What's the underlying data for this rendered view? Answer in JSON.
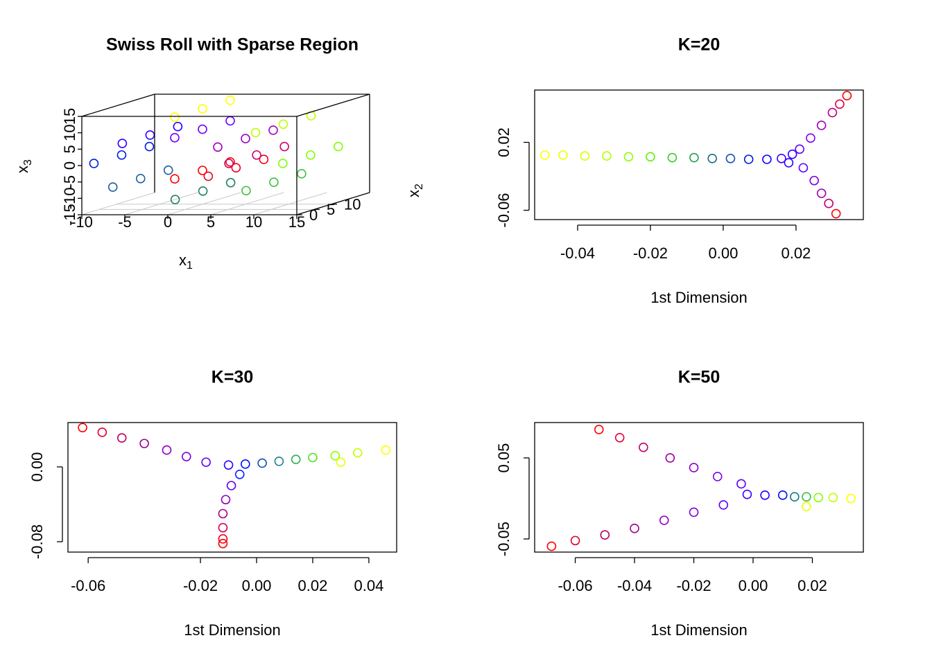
{
  "chart_data": [
    {
      "type": "scatter3d",
      "title": "Swiss Roll with Sparse Region",
      "xlabel": [
        "x",
        "1"
      ],
      "ylabel": [
        "x",
        "2"
      ],
      "zlabel": [
        "x",
        "3"
      ],
      "xlim": [
        -10,
        15
      ],
      "ylim": [
        0,
        21
      ],
      "zlim": [
        -15,
        15
      ],
      "xticks": [
        -10,
        -5,
        0,
        5,
        10,
        15
      ],
      "yticks": [
        0,
        5,
        10
      ],
      "zticks": [
        -15,
        -10,
        -5,
        0,
        5,
        10,
        15
      ],
      "grid": true,
      "x": [
        0,
        0,
        0,
        3.9,
        3.9,
        3.9,
        6.3,
        6.3,
        6.3,
        5,
        5,
        5,
        0,
        0,
        0,
        -6.1,
        -6.1,
        -6.1,
        -9.4,
        -9.4,
        -9.4,
        -7.2,
        -7.2,
        -7.2,
        0.05,
        0.05,
        0.05,
        8.3,
        8.3,
        8.3,
        12.57,
        12.57,
        12.57,
        9.4,
        9.4,
        9.4,
        0,
        0,
        0
      ],
      "y": [
        2,
        10,
        18,
        2,
        10,
        18,
        2,
        10,
        18,
        2,
        10,
        18,
        2,
        10,
        18,
        2,
        10,
        18,
        2,
        10,
        18,
        2,
        10,
        18,
        2,
        10,
        18,
        2,
        10,
        18,
        2,
        10,
        18,
        2,
        10,
        18,
        2,
        10,
        18
      ],
      "z": [
        -4.7,
        -4.7,
        -4.7,
        -3.9,
        -3.9,
        -3.9,
        0,
        0,
        0,
        5,
        5,
        5,
        7.85,
        7.85,
        7.85,
        6.1,
        6.1,
        6.1,
        0,
        0,
        0,
        -7.2,
        -7.2,
        -7.2,
        -11,
        -11,
        -11,
        -8.3,
        -8.3,
        -8.3,
        0,
        0,
        0,
        9.4,
        9.4,
        9.4,
        14.1,
        14.1,
        14.1
      ],
      "colors": [
        "#ff0000",
        "#ff0000",
        "#ff0000",
        "#f00020",
        "#f00020",
        "#f00020",
        "#d0006a",
        "#d0006a",
        "#d0006a",
        "#a000c0",
        "#a000c0",
        "#a000c0",
        "#7000ff",
        "#7000ff",
        "#7000ff",
        "#3000ff",
        "#3000ff",
        "#3000ff",
        "#0020e0",
        "#0020e0",
        "#0020e0",
        "#1f5fa0",
        "#1f5fa0",
        "#1f5fa0",
        "#208060",
        "#208060",
        "#208060",
        "#40c040",
        "#40c040",
        "#40c040",
        "#80ff00",
        "#80ff00",
        "#80ff00",
        "#c0ff00",
        "#c0ff00",
        "#c0ff00",
        "#ffff00",
        "#ffff00",
        "#ffff00"
      ]
    },
    {
      "type": "scatter",
      "title": "K=20",
      "xlabel": "1st Dimension",
      "xlim": [
        -0.0518,
        0.0385
      ],
      "ylim": [
        -0.071,
        0.0816
      ],
      "xticks": [
        -0.04,
        -0.02,
        {
          "value": 0,
          "label": "0.00"
        },
        0.02
      ],
      "yticks": [
        -0.06,
        0.02
      ],
      "x": [
        -0.049,
        -0.044,
        -0.038,
        -0.032,
        -0.026,
        -0.02,
        -0.014,
        -0.008,
        -0.003,
        0.002,
        0.007,
        0.012,
        0.016,
        0.018,
        0.019,
        0.021,
        0.024,
        0.027,
        0.03,
        0.032,
        0.034,
        0.022,
        0.025,
        0.027,
        0.029,
        0.031
      ],
      "y": [
        0.005,
        0.005,
        0.004,
        0.004,
        0.003,
        0.003,
        0.002,
        0.002,
        0.001,
        0.001,
        0,
        0,
        0.001,
        -0.004,
        0.006,
        0.012,
        0.025,
        0.04,
        0.055,
        0.065,
        0.075,
        -0.01,
        -0.025,
        -0.04,
        -0.052,
        -0.064
      ],
      "colors": [
        "#ffff00",
        "#eeff00",
        "#d8ff00",
        "#b8ff00",
        "#90ff00",
        "#60f000",
        "#30d020",
        "#20a050",
        "#1a7080",
        "#1050b0",
        "#0020e0",
        "#1000ff",
        "#4000ff",
        "#3000ff",
        "#3000ff",
        "#6000ff",
        "#8000f0",
        "#a000c0",
        "#c00080",
        "#e00040",
        "#ff0000",
        "#6000ff",
        "#8000e0",
        "#a000b0",
        "#c00070",
        "#ff0000"
      ]
    },
    {
      "type": "scatter",
      "title": "K=30",
      "xlabel": "1st Dimension",
      "xlim": [
        -0.0672,
        0.0499
      ],
      "ylim": [
        -0.0911,
        0.0474
      ],
      "xticks": [
        -0.06,
        -0.02,
        {
          "value": 0,
          "label": "0.00"
        },
        0.02,
        0.04
      ],
      "yticks": [
        -0.08,
        {
          "value": 0,
          "label": "0.00"
        }
      ],
      "x": [
        -0.062,
        -0.055,
        -0.048,
        -0.04,
        -0.032,
        -0.025,
        -0.018,
        -0.01,
        -0.004,
        0.002,
        0.008,
        0.014,
        0.02,
        0.028,
        0.036,
        0.046,
        0.03,
        -0.006,
        -0.009,
        -0.011,
        -0.012,
        -0.012,
        -0.012,
        -0.012
      ],
      "y": [
        0.042,
        0.037,
        0.031,
        0.025,
        0.018,
        0.011,
        0.005,
        0.002,
        0.003,
        0.004,
        0.006,
        0.008,
        0.01,
        0.012,
        0.015,
        0.018,
        0.005,
        -0.008,
        -0.02,
        -0.035,
        -0.05,
        -0.065,
        -0.077,
        -0.082
      ],
      "colors": [
        "#ff0000",
        "#e00030",
        "#c00060",
        "#a00090",
        "#9000c0",
        "#8000e0",
        "#6000ff",
        "#3000ff",
        "#0010ff",
        "#1050c0",
        "#208090",
        "#30b050",
        "#50e020",
        "#90ff00",
        "#c0ff00",
        "#ffff00",
        "#e8ff00",
        "#1020ff",
        "#6000f0",
        "#9000c0",
        "#b00090",
        "#d00050",
        "#f00020",
        "#ff0000"
      ]
    },
    {
      "type": "scatter",
      "title": "K=50",
      "xlabel": "1st Dimension",
      "xlim": [
        -0.0737,
        0.0372
      ],
      "ylim": [
        -0.0662,
        0.0936
      ],
      "xticks": [
        -0.06,
        -0.04,
        -0.02,
        {
          "value": 0,
          "label": "0.00"
        },
        0.02
      ],
      "yticks": [
        -0.05,
        0.05
      ],
      "x": [
        -0.052,
        -0.045,
        -0.037,
        -0.028,
        -0.02,
        -0.012,
        -0.004,
        -0.068,
        -0.06,
        -0.05,
        -0.04,
        -0.03,
        -0.02,
        -0.01,
        -0.002,
        0.004,
        0.01,
        0.014,
        0.018,
        0.022,
        0.027,
        0.033,
        0.018
      ],
      "y": [
        0.085,
        0.075,
        0.063,
        0.05,
        0.038,
        0.027,
        0.018,
        -0.059,
        -0.052,
        -0.045,
        -0.037,
        -0.027,
        -0.017,
        -0.008,
        0.005,
        0.004,
        0.004,
        0.002,
        0.002,
        0.001,
        0.001,
        0,
        -0.01
      ],
      "colors": [
        "#ff0000",
        "#e00040",
        "#c00070",
        "#a000a0",
        "#9000c0",
        "#8000e0",
        "#6000f0",
        "#ff0000",
        "#e00030",
        "#c00060",
        "#a00090",
        "#9000c0",
        "#8000e0",
        "#6000f0",
        "#4000ff",
        "#2000ff",
        "#0010f0",
        "#108080",
        "#40c040",
        "#80ff00",
        "#c0ff00",
        "#ffff00",
        "#e8ff00"
      ]
    }
  ]
}
